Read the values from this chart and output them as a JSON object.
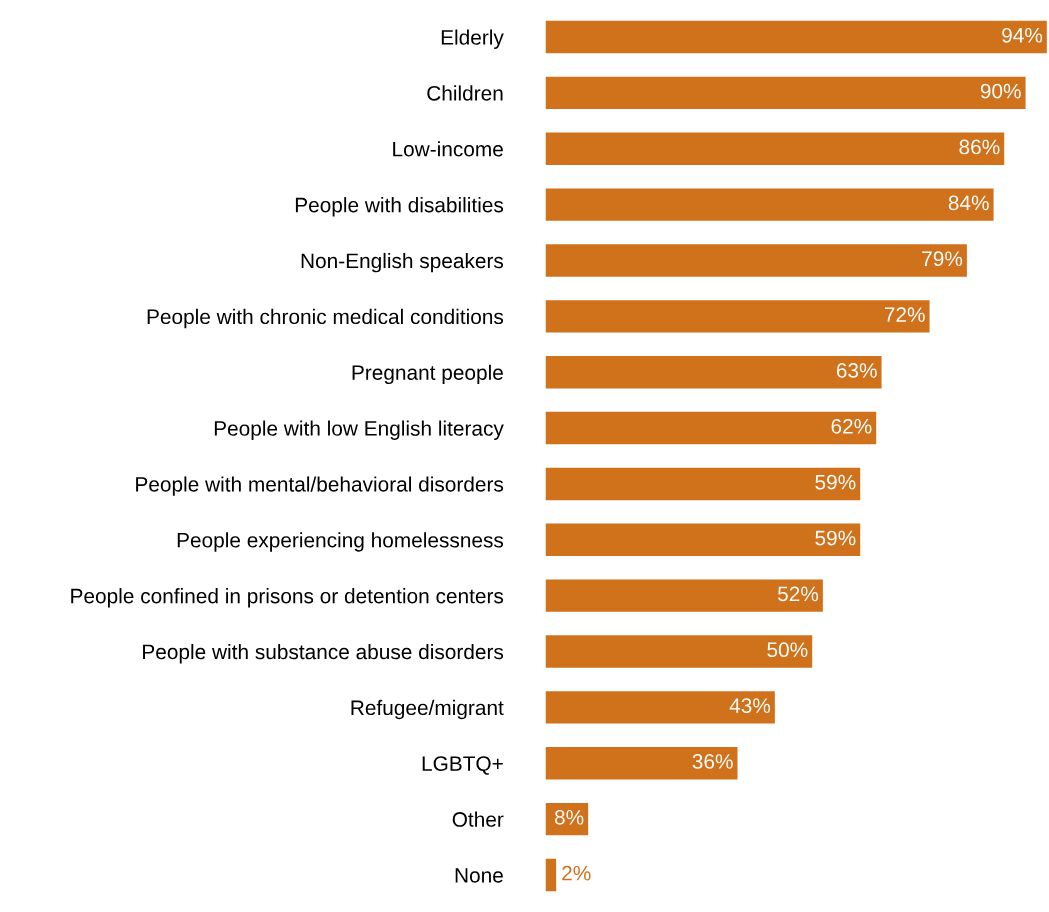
{
  "chart_data": {
    "type": "bar",
    "orientation": "horizontal",
    "categories": [
      "Elderly",
      "Children",
      "Low-income",
      "People with disabilities",
      "Non-English speakers",
      "People with chronic medical conditions",
      "Pregnant people",
      "People with low English literacy",
      "People with mental/behavioral disorders",
      "People experiencing homelessness",
      "People confined in prisons or detention centers",
      "People with substance abuse disorders",
      "Refugee/migrant",
      "LGBTQ+",
      "Other",
      "None"
    ],
    "series": [
      {
        "color": "#d0711b",
        "values": [
          94,
          90,
          86,
          84,
          79,
          72,
          63,
          62,
          59,
          59,
          52,
          50,
          43,
          36,
          8,
          2
        ],
        "value_labels": [
          "94%",
          "90%",
          "86%",
          "84%",
          "79%",
          "72%",
          "63%",
          "62%",
          "59%",
          "59%",
          "52%",
          "50%",
          "43%",
          "36%",
          "8%",
          "2%"
        ]
      }
    ],
    "grid": false,
    "legend": false,
    "tick_labels": "y"
  }
}
